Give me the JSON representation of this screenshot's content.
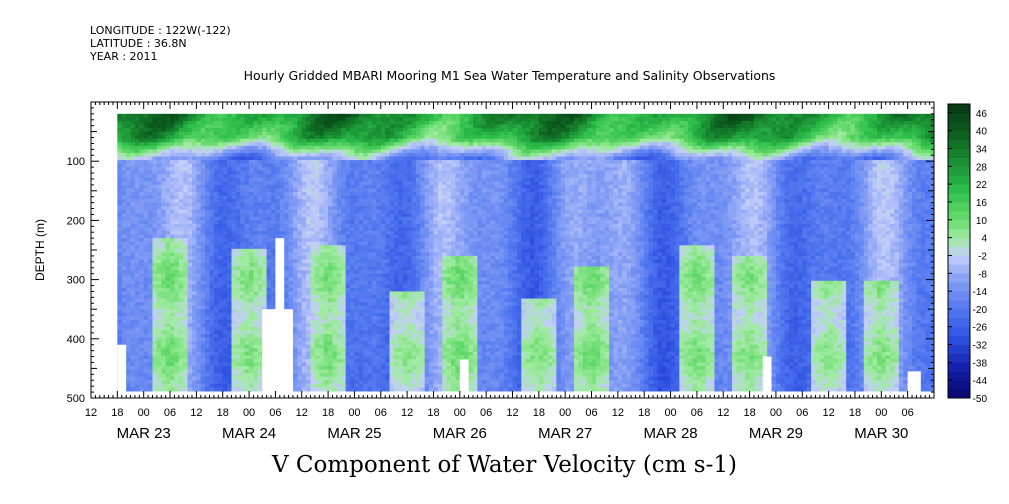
{
  "header": {
    "longitude": "LONGITUDE : 122W(-122)",
    "latitude": "LATITUDE : 36.8N",
    "year": "YEAR : 2011"
  },
  "chart_data": {
    "type": "heatmap",
    "title": "Hourly Gridded MBARI Mooring M1 Sea Water Temperature and Salinity Observations",
    "xlabel": "V Component of Water Velocity (cm s-1)",
    "ylabel": "DEPTH (m)",
    "y_axis": {
      "min": 0,
      "max": 500,
      "reversed": true,
      "ticks": [
        100,
        200,
        300,
        400,
        500
      ]
    },
    "x_axis": {
      "start": "MAR 22 12:00",
      "end": "MAR 30 12:00",
      "hour_ticks": [
        "12",
        "18",
        "00",
        "06",
        "12",
        "18",
        "00",
        "06",
        "12",
        "18",
        "00",
        "06",
        "12",
        "18",
        "00",
        "06",
        "12",
        "18",
        "00",
        "06",
        "12",
        "18",
        "00",
        "06",
        "12",
        "18",
        "00",
        "06",
        "12",
        "18",
        "00",
        "06"
      ],
      "day_labels": [
        "MAR 23",
        "MAR 24",
        "MAR 25",
        "MAR 26",
        "MAR 27",
        "MAR 28",
        "MAR 29",
        "MAR 30"
      ]
    },
    "colorbar": {
      "labels": [
        "46",
        "40",
        "34",
        "28",
        "22",
        "16",
        "10",
        "4",
        "-2",
        "-8",
        "-14",
        "-20",
        "-26",
        "-32",
        "-38",
        "-44",
        "-50"
      ],
      "min": -50,
      "max": 49,
      "step": 3
    },
    "data_extent": {
      "depth_min": 20,
      "depth_max": 488,
      "start": "MAR 22 18:00",
      "end": "MAR 30 12:00"
    },
    "patterns": {
      "surface_layer": {
        "depth_range": [
          20,
          100
        ],
        "value_range": [
          10,
          40
        ],
        "note": "strong positive (green) velocities near surface"
      },
      "deep_layer": {
        "depth_range": [
          100,
          488
        ],
        "value_range": [
          -32,
          4
        ],
        "note": "predominantly negative (blue) velocities with vertical banding"
      },
      "positive_streaks": [
        {
          "time": "MAR 23 06:00",
          "depth_range": [
            230,
            488
          ],
          "value": 6
        },
        {
          "time": "MAR 24 00:00",
          "depth_range": [
            250,
            488
          ],
          "value": 4
        },
        {
          "time": "MAR 24 18:00",
          "depth_range": [
            240,
            488
          ],
          "value": 5
        },
        {
          "time": "MAR 25 12:00",
          "depth_range": [
            320,
            488
          ],
          "value": 3
        },
        {
          "time": "MAR 26 00:00",
          "depth_range": [
            260,
            488
          ],
          "value": 6
        },
        {
          "time": "MAR 26 18:00",
          "depth_range": [
            330,
            488
          ],
          "value": 4
        },
        {
          "time": "MAR 27 06:00",
          "depth_range": [
            280,
            488
          ],
          "value": 6
        },
        {
          "time": "MAR 28 06:00",
          "depth_range": [
            240,
            488
          ],
          "value": 5
        },
        {
          "time": "MAR 28 18:00",
          "depth_range": [
            260,
            488
          ],
          "value": 4
        },
        {
          "time": "MAR 29 12:00",
          "depth_range": [
            300,
            488
          ],
          "value": 3
        },
        {
          "time": "MAR 30 00:00",
          "depth_range": [
            300,
            488
          ],
          "value": 4
        }
      ],
      "missing_data": [
        {
          "start": "MAR 22 18:00",
          "end": "MAR 22 20:00",
          "depth_range": [
            410,
            500
          ]
        },
        {
          "start": "MAR 24 06:00",
          "end": "MAR 24 08:00",
          "depth_range": [
            230,
            500
          ]
        },
        {
          "start": "MAR 24 03:00",
          "end": "MAR 24 10:00",
          "depth_range": [
            350,
            500
          ]
        },
        {
          "start": "MAR 26 00:00",
          "end": "MAR 26 02:00",
          "depth_range": [
            435,
            500
          ]
        },
        {
          "start": "MAR 28 21:00",
          "end": "MAR 28 23:00",
          "depth_range": [
            430,
            500
          ]
        },
        {
          "start": "MAR 30 06:00",
          "end": "MAR 30 09:00",
          "depth_range": [
            455,
            500
          ]
        }
      ]
    },
    "colors": {
      "positive_dark": "#0a3f1a",
      "positive": "#1fb34a",
      "near_zero": "#c8d6ff",
      "negative": "#5278f0",
      "negative_dark": "#07087a"
    }
  }
}
